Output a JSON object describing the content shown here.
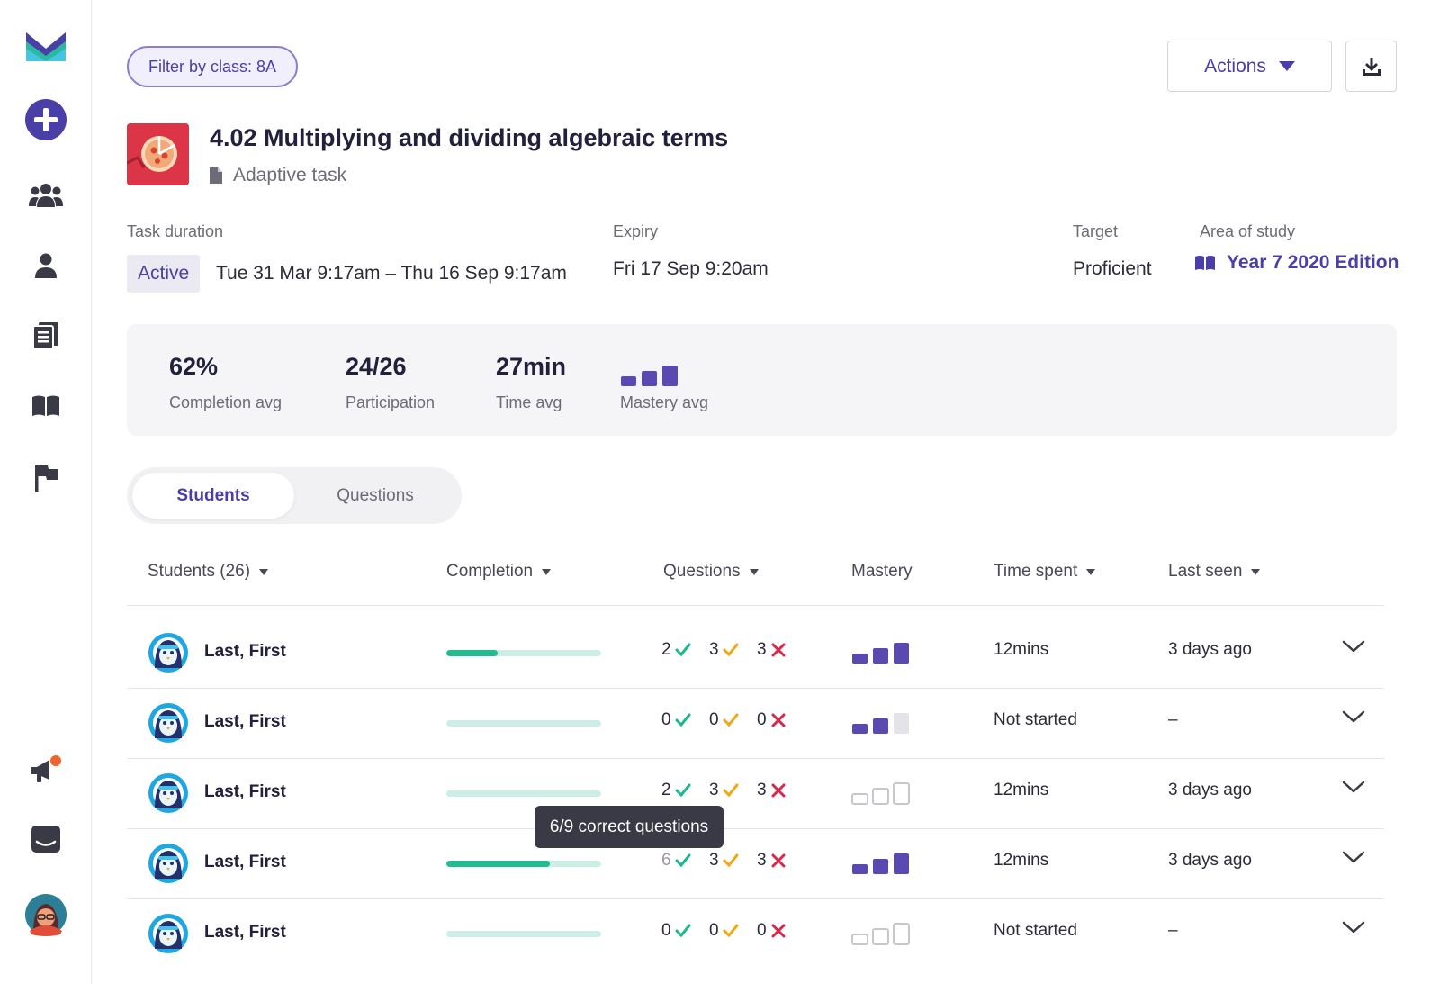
{
  "sidebar": {
    "items": [
      {
        "icon": "logo-icon"
      },
      {
        "icon": "add-icon"
      },
      {
        "icon": "classes-icon"
      },
      {
        "icon": "student-icon"
      },
      {
        "icon": "tasks-icon"
      },
      {
        "icon": "library-icon"
      },
      {
        "icon": "flag-icon"
      },
      {
        "icon": "announcements-icon"
      },
      {
        "icon": "messages-icon"
      },
      {
        "icon": "profile-avatar"
      }
    ]
  },
  "topbar": {
    "filter_label": "Filter by class: 8A",
    "actions_label": "Actions",
    "download_icon": "download-icon"
  },
  "task": {
    "title": "4.02 Multiplying and dividing algebraic terms",
    "type": "Adaptive task"
  },
  "meta": {
    "duration_label": "Task duration",
    "status": "Active",
    "duration_value": "Tue 31 Mar 9:17am – Thu 16 Sep 9:17am",
    "expiry_label": "Expiry",
    "expiry_value": "Fri 17 Sep 9:20am",
    "target_label": "Target",
    "target_value": "Proficient",
    "area_label": "Area of study",
    "area_value": "Year 7 2020 Edition"
  },
  "stats": [
    {
      "value": "62%",
      "label": "Completion avg"
    },
    {
      "value": "24/26",
      "label": "Participation"
    },
    {
      "value": "27min",
      "label": "Time avg"
    },
    {
      "value": "",
      "label": "Mastery avg",
      "mastery_level": 3
    }
  ],
  "tabs": {
    "active": "Students",
    "inactive": "Questions"
  },
  "table": {
    "headers": {
      "students": "Students (26)",
      "completion": "Completion",
      "questions": "Questions",
      "mastery": "Mastery",
      "time": "Time spent",
      "seen": "Last seen"
    },
    "rows": [
      {
        "name": "Last, First",
        "completion": 0.33,
        "correct": "2",
        "partial": "3",
        "wrong": "3",
        "mastery": 3,
        "time": "12mins",
        "seen": "3 days ago"
      },
      {
        "name": "Last, First",
        "completion": 0,
        "correct": "0",
        "partial": "0",
        "wrong": "0",
        "mastery": 2,
        "time": "Not started",
        "seen": "–"
      },
      {
        "name": "Last, First",
        "completion": 0,
        "correct": "2",
        "partial": "3",
        "wrong": "3",
        "mastery": 0,
        "time": "12mins",
        "seen": "3 days ago"
      },
      {
        "name": "Last, First",
        "completion": 0.67,
        "correct": "6",
        "partial": "3",
        "wrong": "3",
        "mastery": 3,
        "time": "12mins",
        "seen": "3 days ago"
      },
      {
        "name": "Last, First",
        "completion": 0,
        "correct": "0",
        "partial": "0",
        "wrong": "0",
        "mastery": 0,
        "time": "Not started",
        "seen": "–"
      }
    ]
  },
  "tooltip": "6/9 correct questions",
  "colors": {
    "brand_purple": "#4a3fa6",
    "mastery_purple": "#5a49b0",
    "progress_green": "#22bb92",
    "check_green": "#1bb890",
    "check_amber": "#f0a818",
    "cross_red": "#d8294a"
  }
}
